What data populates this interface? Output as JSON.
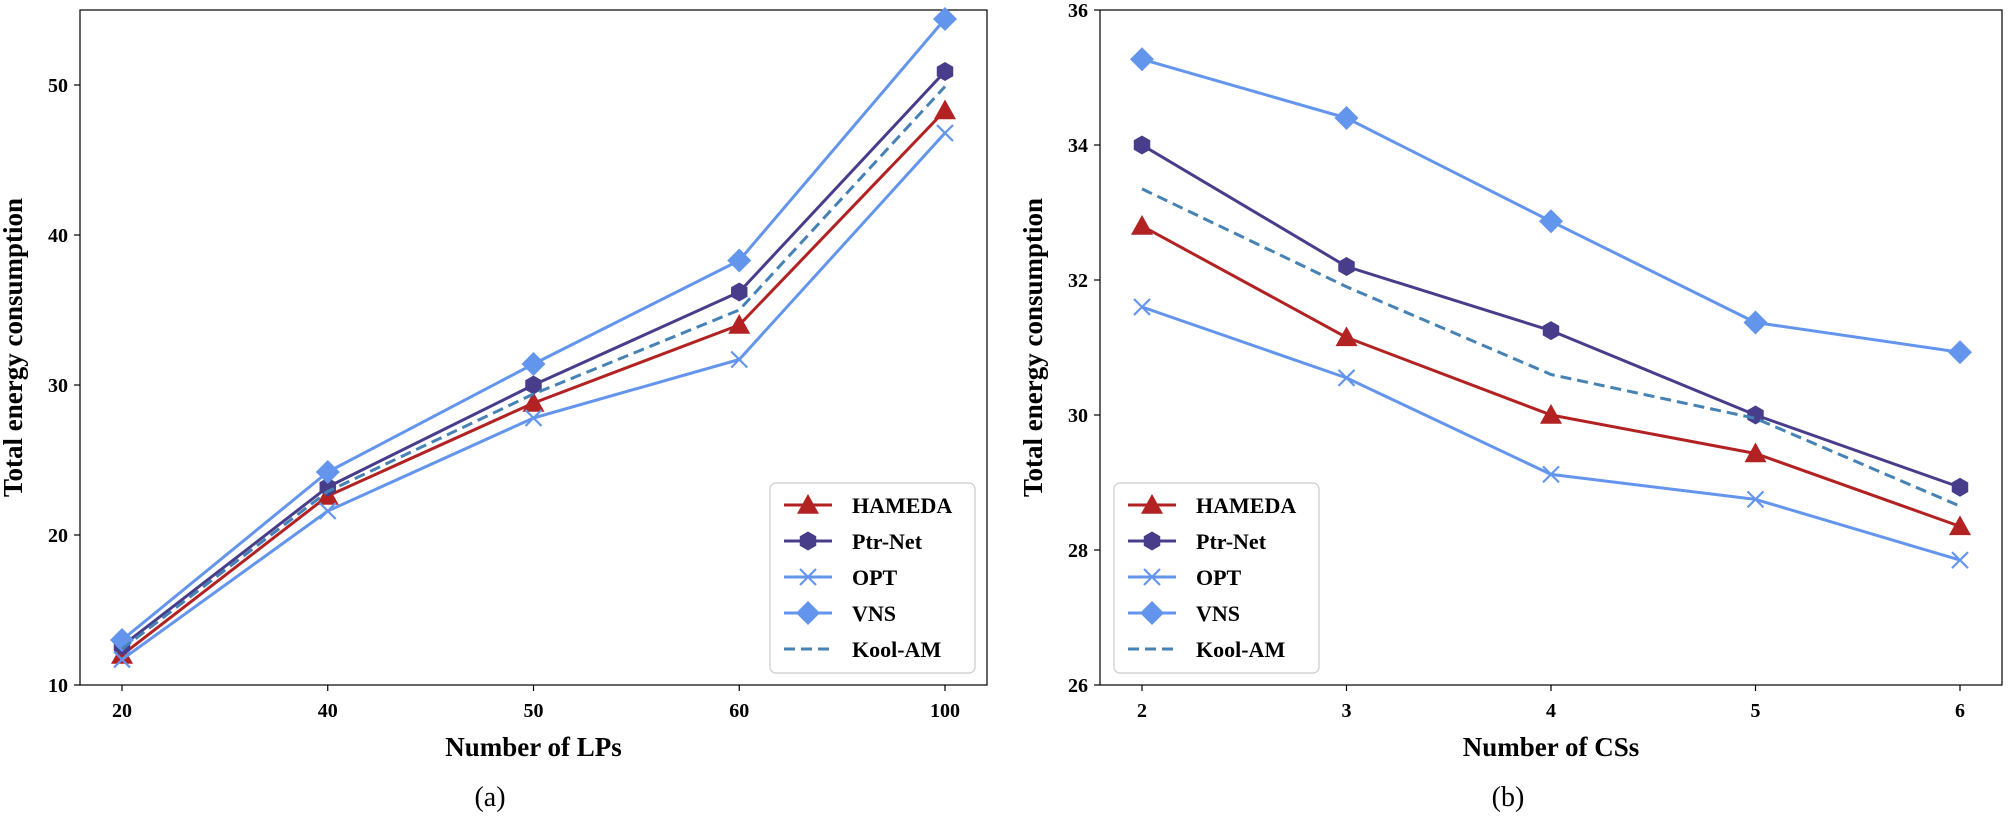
{
  "chart_data": [
    {
      "type": "line",
      "caption": "(a)",
      "xlabel": "Number of LPs",
      "ylabel": "Total energy consumption",
      "categories": [
        "20",
        "40",
        "50",
        "60",
        "100"
      ],
      "ylim": [
        10,
        55
      ],
      "yticks": [
        "10",
        "20",
        "30",
        "40",
        "50"
      ],
      "legend_position": "lower-right",
      "series": [
        {
          "name": "HAMEDA",
          "color": "#b22222",
          "marker": "triangle",
          "dash": false,
          "values": [
            12.0,
            22.6,
            28.8,
            34.0,
            48.3
          ]
        },
        {
          "name": "Ptr-Net",
          "color": "#483d8b",
          "marker": "hexagon",
          "dash": false,
          "values": [
            12.6,
            23.2,
            30.0,
            36.2,
            50.9
          ]
        },
        {
          "name": "OPT",
          "color": "#6495ed",
          "marker": "x",
          "dash": false,
          "values": [
            11.7,
            21.6,
            27.8,
            31.7,
            46.8
          ]
        },
        {
          "name": "VNS",
          "color": "#6495ed",
          "marker": "diamond",
          "dash": false,
          "values": [
            13.0,
            24.2,
            31.4,
            38.3,
            54.4
          ]
        },
        {
          "name": "Kool-AM",
          "color": "#4682b4",
          "marker": "none",
          "dash": true,
          "values": [
            12.4,
            22.9,
            29.4,
            35.0,
            49.9
          ]
        }
      ]
    },
    {
      "type": "line",
      "caption": "(b)",
      "xlabel": "Number of CSs",
      "ylabel": "Total energy consumption",
      "categories": [
        "2",
        "3",
        "4",
        "5",
        "6"
      ],
      "ylim": [
        26,
        36
      ],
      "yticks": [
        "26",
        "28",
        "30",
        "32",
        "34",
        "36"
      ],
      "legend_position": "lower-left",
      "series": [
        {
          "name": "HAMEDA",
          "color": "#b22222",
          "marker": "triangle",
          "dash": false,
          "values": [
            32.8,
            31.15,
            30.0,
            29.43,
            28.35
          ]
        },
        {
          "name": "Ptr-Net",
          "color": "#483d8b",
          "marker": "hexagon",
          "dash": false,
          "values": [
            34.0,
            32.2,
            31.25,
            30.0,
            28.93
          ]
        },
        {
          "name": "OPT",
          "color": "#6495ed",
          "marker": "x",
          "dash": false,
          "values": [
            31.6,
            30.55,
            29.12,
            28.75,
            27.85
          ]
        },
        {
          "name": "VNS",
          "color": "#6495ed",
          "marker": "diamond",
          "dash": false,
          "values": [
            35.27,
            34.4,
            32.87,
            31.37,
            30.93
          ]
        },
        {
          "name": "Kool-AM",
          "color": "#4682b4",
          "marker": "none",
          "dash": true,
          "values": [
            33.35,
            31.9,
            30.6,
            29.95,
            28.65
          ]
        }
      ]
    }
  ]
}
